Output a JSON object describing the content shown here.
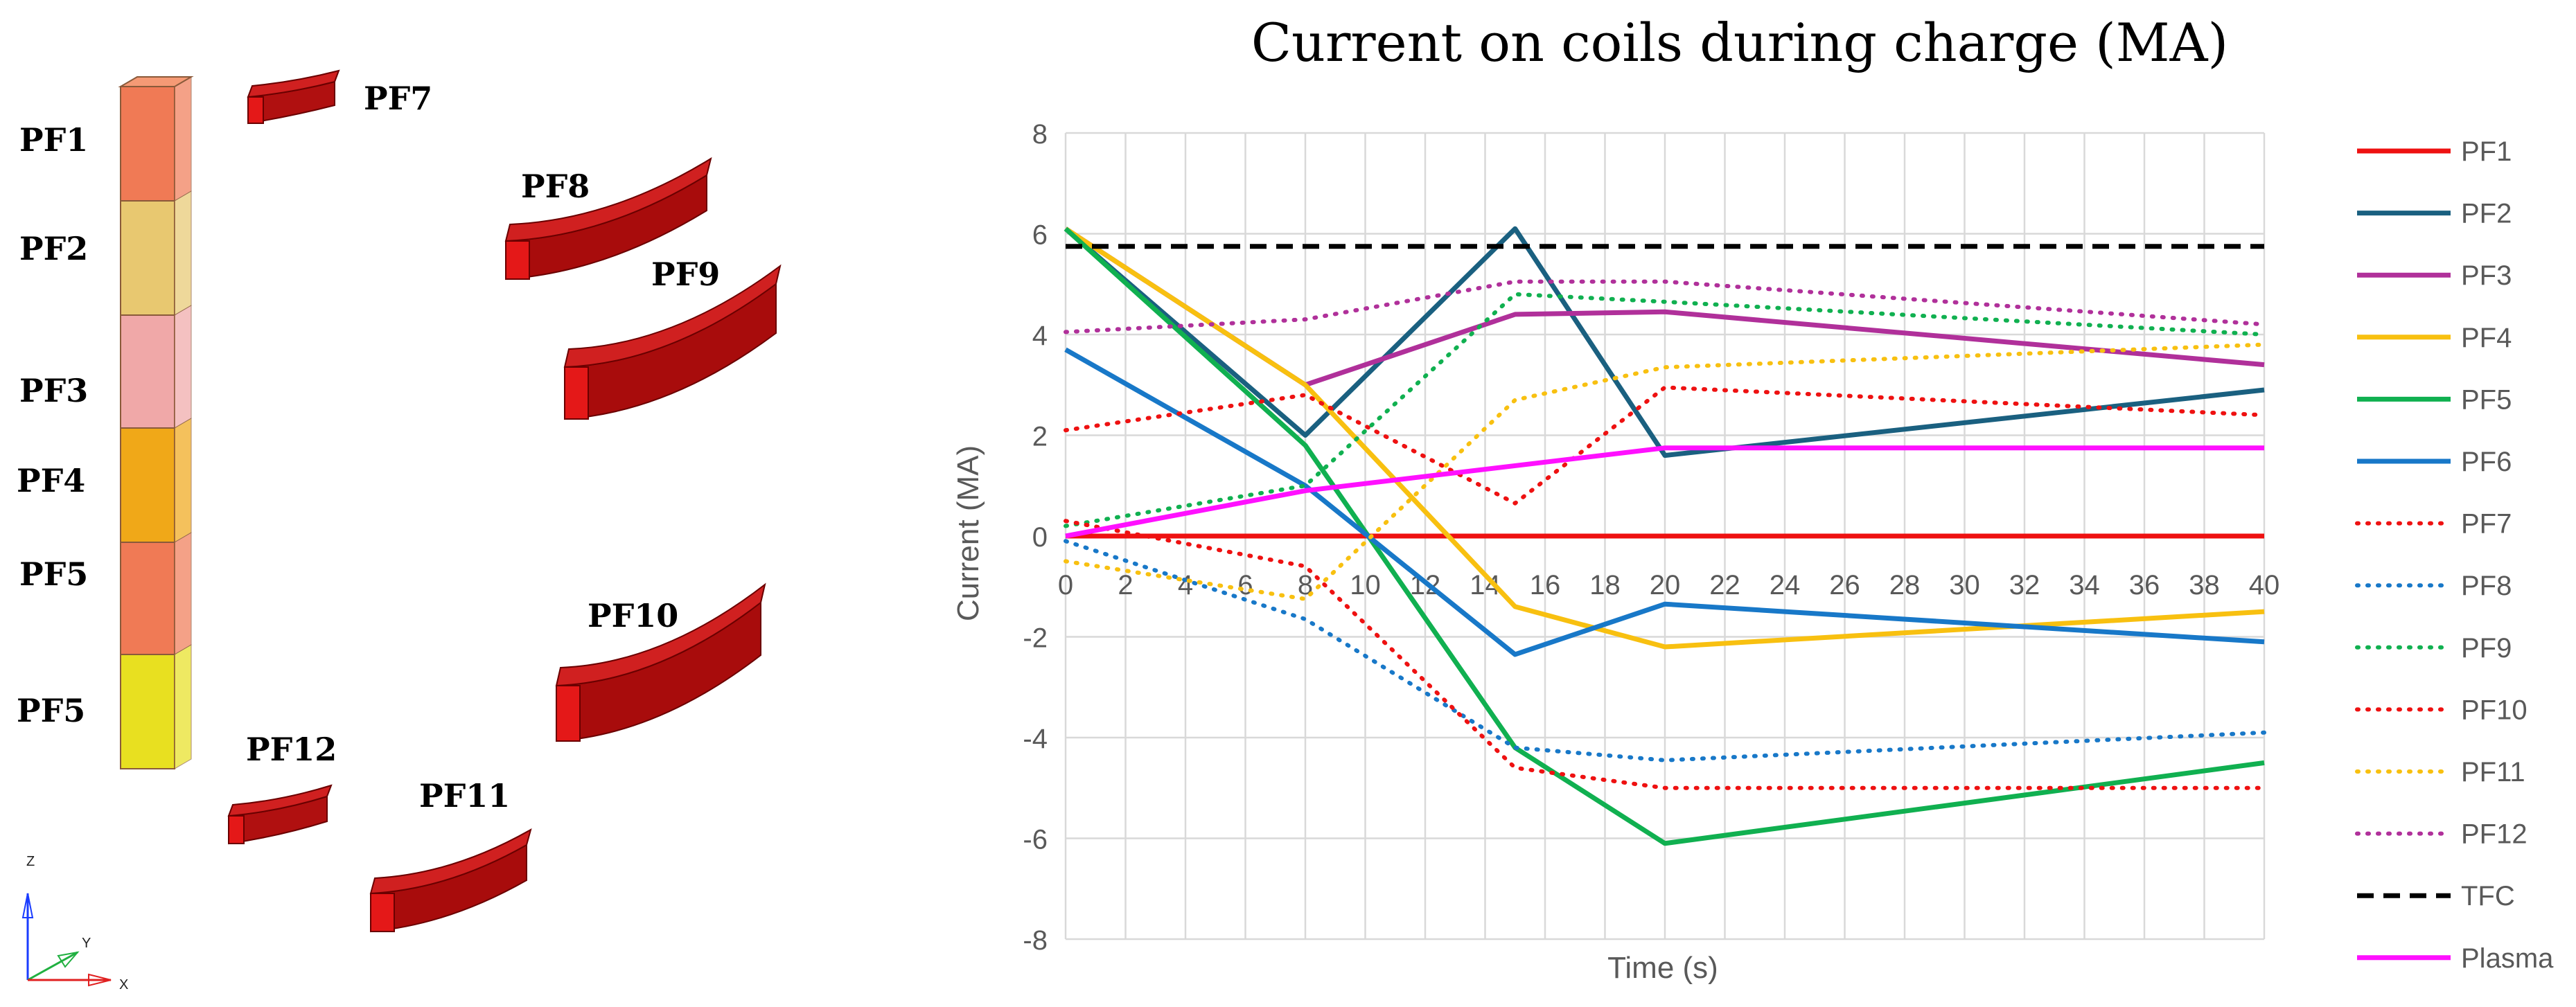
{
  "geometry_panel": {
    "stack_labels": [
      "PF1",
      "PF2",
      "PF3",
      "PF4",
      "PF5",
      "PF5"
    ],
    "coil_labels": [
      "PF7",
      "PF8",
      "PF9",
      "PF10",
      "PF12",
      "PF11"
    ],
    "stack_colors": [
      "#f07a55",
      "#e8c870",
      "#f0a8a8",
      "#f0a818",
      "#f07a55",
      "#e8e020"
    ],
    "coil_color": "#b81010",
    "axes": {
      "z": "Z",
      "y": "Y",
      "x": "X"
    }
  },
  "chart_data": {
    "type": "line",
    "title": "Current on coils during charge (MA)",
    "xlabel": "Time (s)",
    "ylabel": "Current (MA)",
    "xlim": [
      0,
      40
    ],
    "ylim": [
      -8,
      8
    ],
    "x_ticks": [
      0,
      2,
      4,
      6,
      8,
      10,
      12,
      14,
      16,
      18,
      20,
      22,
      24,
      26,
      28,
      30,
      32,
      34,
      36,
      38,
      40
    ],
    "y_ticks": [
      8,
      6,
      4,
      2,
      0,
      -2,
      -4,
      -6,
      -8
    ],
    "grid": true,
    "legend_position": "right",
    "series": [
      {
        "name": "PF1",
        "color": "#ee1111",
        "style": "solid",
        "x": [
          0,
          40
        ],
        "y": [
          0,
          0
        ]
      },
      {
        "name": "PF2",
        "color": "#1a6080",
        "style": "solid",
        "x": [
          0,
          8,
          15,
          20,
          40
        ],
        "y": [
          6.1,
          2.0,
          6.1,
          1.6,
          2.9
        ]
      },
      {
        "name": "PF3",
        "color": "#b0309a",
        "style": "solid",
        "x": [
          0,
          8,
          15,
          20,
          40
        ],
        "y": [
          6.1,
          3.0,
          4.4,
          4.45,
          3.4
        ]
      },
      {
        "name": "PF4",
        "color": "#f8c010",
        "style": "solid",
        "x": [
          0,
          8,
          15,
          20,
          40
        ],
        "y": [
          6.1,
          3.0,
          -1.4,
          -2.2,
          -1.5
        ]
      },
      {
        "name": "PF5",
        "color": "#10b050",
        "style": "solid",
        "x": [
          0,
          8,
          15,
          20,
          40
        ],
        "y": [
          6.1,
          1.8,
          -4.2,
          -6.1,
          -4.5
        ]
      },
      {
        "name": "PF6",
        "color": "#1878c8",
        "style": "solid",
        "x": [
          0,
          8,
          15,
          20,
          40
        ],
        "y": [
          3.7,
          1.0,
          -2.35,
          -1.35,
          -2.1
        ]
      },
      {
        "name": "PF7",
        "color": "#ee1111",
        "style": "dotted",
        "x": [
          0,
          8,
          15,
          20,
          40
        ],
        "y": [
          2.1,
          2.8,
          0.65,
          2.95,
          2.4
        ]
      },
      {
        "name": "PF8",
        "color": "#1878c8",
        "style": "dotted",
        "x": [
          0,
          8,
          15,
          20,
          40
        ],
        "y": [
          -0.1,
          -1.65,
          -4.2,
          -4.45,
          -3.9
        ]
      },
      {
        "name": "PF9",
        "color": "#10b050",
        "style": "dotted",
        "x": [
          0,
          8,
          15,
          20,
          40
        ],
        "y": [
          0.2,
          1.0,
          4.8,
          4.65,
          4.0
        ]
      },
      {
        "name": "PF10",
        "color": "#ee1111",
        "style": "dotted",
        "x": [
          0,
          8,
          15,
          20,
          40
        ],
        "y": [
          0.3,
          -0.6,
          -4.6,
          -5.0,
          -5.0
        ]
      },
      {
        "name": "PF11",
        "color": "#f8c010",
        "style": "dotted",
        "x": [
          0,
          8,
          15,
          20,
          40
        ],
        "y": [
          -0.5,
          -1.25,
          2.7,
          3.35,
          3.8
        ]
      },
      {
        "name": "PF12",
        "color": "#b0309a",
        "style": "dotted",
        "x": [
          0,
          8,
          15,
          20,
          40
        ],
        "y": [
          4.05,
          4.3,
          5.05,
          5.05,
          4.2
        ]
      },
      {
        "name": "TFC",
        "color": "#000000",
        "style": "dashed",
        "x": [
          0,
          40
        ],
        "y": [
          5.75,
          5.75
        ]
      },
      {
        "name": "Plasma",
        "color": "#ff10ff",
        "style": "solid",
        "x": [
          0,
          8,
          20,
          40
        ],
        "y": [
          0,
          0.9,
          1.75,
          1.75
        ]
      }
    ]
  }
}
